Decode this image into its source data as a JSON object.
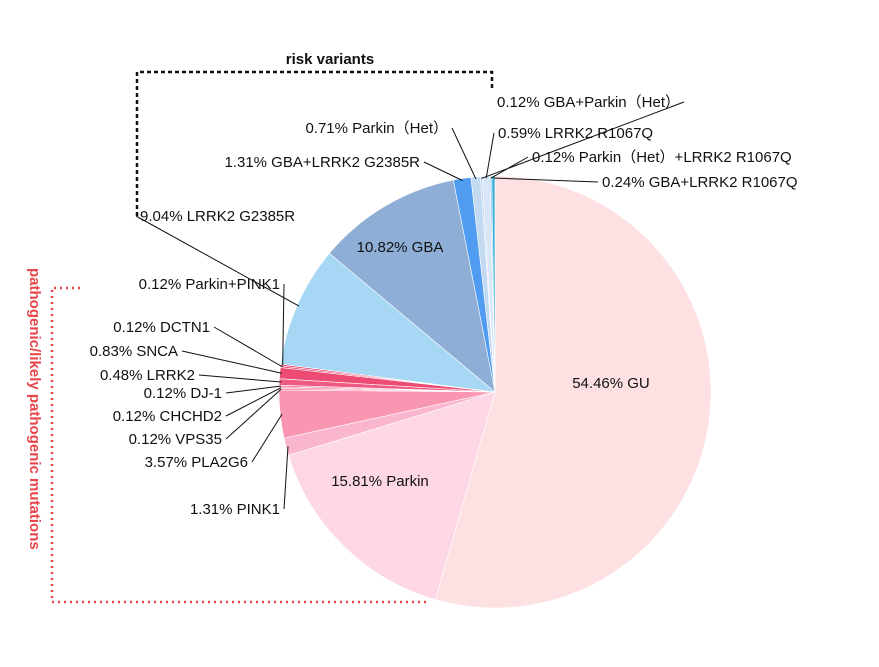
{
  "chart_data": {
    "type": "pie",
    "start": "12 o'clock",
    "direction": "clockwise",
    "slices": [
      {
        "label": "GU",
        "value": 54.46,
        "text": "54.46%  GU",
        "color": "#fde0e2",
        "placement": "inside"
      },
      {
        "label": "Parkin",
        "value": 15.81,
        "text": "15.81%  Parkin",
        "color": "#fdd7e6",
        "placement": "inside"
      },
      {
        "label": "PINK1",
        "value": 1.31,
        "text": "1.31%  PINK1",
        "color": "#fbb6cf",
        "placement": "outside"
      },
      {
        "label": "PLA2G6",
        "value": 3.57,
        "text": "3.57%  PLA2G6",
        "color": "#f997b2",
        "placement": "outside"
      },
      {
        "label": "VPS35",
        "value": 0.12,
        "text": "0.12%  VPS35",
        "color": "#f58aa8",
        "placement": "outside"
      },
      {
        "label": "CHCHD2",
        "value": 0.12,
        "text": "0.12%  CHCHD2",
        "color": "#f37b9c",
        "placement": "outside"
      },
      {
        "label": "DJ-1",
        "value": 0.12,
        "text": "0.12%  DJ-1",
        "color": "#f06a8e",
        "placement": "outside"
      },
      {
        "label": "LRRK2",
        "value": 0.48,
        "text": "0.48%  LRRK2",
        "color": "#ee5a82",
        "placement": "outside"
      },
      {
        "label": "SNCA",
        "value": 0.83,
        "text": "0.83%  SNCA",
        "color": "#ec4c74",
        "placement": "outside"
      },
      {
        "label": "DCTN1",
        "value": 0.12,
        "text": "0.12%  DCTN1",
        "color": "#e93b67",
        "placement": "outside"
      },
      {
        "label": "Parkin+PINK1",
        "value": 0.12,
        "text": "0.12%  Parkin+PINK1",
        "color": "#e62e5c",
        "placement": "outside"
      },
      {
        "label": "LRRK2 G2385R",
        "value": 9.04,
        "text": "9.04%  LRRK2 G2385R",
        "color": "#a6d8f5",
        "placement": "outside"
      },
      {
        "label": "GBA",
        "value": 10.82,
        "text": "10.82%  GBA",
        "color": "#8eaed6",
        "placement": "inside"
      },
      {
        "label": "GBA+LRRK2 G2385R",
        "value": 1.31,
        "text": "1.31%  GBA+LRRK2 G2385R",
        "color": "#4f9cf0",
        "placement": "outside"
      },
      {
        "label": "Parkin (Het)",
        "value": 0.71,
        "text": "0.71%  Parkin（Het）",
        "color": "#c2d9f2",
        "placement": "outside"
      },
      {
        "label": "GBA+Parkin (Het)",
        "value": 0.12,
        "text": "0.12%  GBA+Parkin（Het）",
        "color": "#b7cbea",
        "placement": "outside"
      },
      {
        "label": "LRRK2 R1067Q",
        "value": 0.59,
        "text": "0.59%  LRRK2 R1067Q",
        "color": "#d9e6f7",
        "placement": "outside"
      },
      {
        "label": "Parkin (Het)+LRRK2 R1067Q",
        "value": 0.12,
        "text": "0.12%  Parkin（Het）+LRRK2 R1067Q",
        "color": "#7cc1e6",
        "placement": "outside"
      },
      {
        "label": "GBA+LRRK2 R1067Q",
        "value": 0.24,
        "text": "0.24%  GBA+LRRK2 R1067Q",
        "color": "#3fb1d8",
        "placement": "outside"
      }
    ],
    "groups": [
      {
        "name": "risk variants",
        "style": "dashed black bracket",
        "placement": "top"
      },
      {
        "name": "pathogenic/likely pathogenic mutations",
        "style": "dotted red bracket",
        "placement": "left",
        "color": "#e8464b"
      }
    ],
    "legend": "none"
  }
}
